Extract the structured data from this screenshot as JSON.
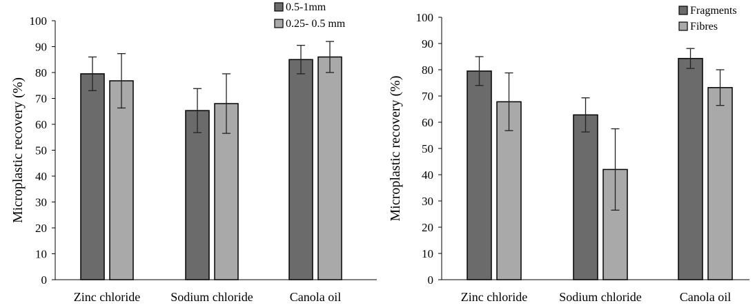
{
  "chart_data": [
    {
      "type": "bar",
      "categories": [
        "Zinc chloride",
        "Sodium chloride",
        "Canola oil"
      ],
      "ylabel": "Microplastic recovery (%)",
      "xlabel": "",
      "ylim": [
        0,
        100
      ],
      "yticks": [
        0,
        10,
        20,
        30,
        40,
        50,
        60,
        70,
        80,
        90,
        100
      ],
      "grid": false,
      "legend": "top-right",
      "series": [
        {
          "name": "0.5-1mm",
          "color": "#6b6b6b",
          "values": [
            79.5,
            65.3,
            85.0
          ],
          "errors": [
            6.5,
            8.5,
            5.5
          ]
        },
        {
          "name": "0.25- 0.5 mm",
          "color": "#a9a9a9",
          "values": [
            76.8,
            68.0,
            86.0
          ],
          "errors": [
            10.5,
            11.5,
            6.0
          ]
        }
      ]
    },
    {
      "type": "bar",
      "categories": [
        "Zinc chloride",
        "Sodium chloride",
        "Canola oil"
      ],
      "ylabel": "Microplastic recovery (%)",
      "xlabel": "",
      "ylim": [
        0,
        100
      ],
      "yticks": [
        0,
        10,
        20,
        30,
        40,
        50,
        60,
        70,
        80,
        90,
        100
      ],
      "grid": false,
      "legend": "top-right",
      "series": [
        {
          "name": "Fragments",
          "color": "#6b6b6b",
          "values": [
            79.5,
            62.8,
            84.3
          ],
          "errors": [
            5.5,
            6.5,
            3.8
          ]
        },
        {
          "name": "Fibres",
          "color": "#a9a9a9",
          "values": [
            67.8,
            42.0,
            73.2
          ],
          "errors": [
            11.0,
            15.5,
            6.8
          ]
        }
      ]
    }
  ]
}
